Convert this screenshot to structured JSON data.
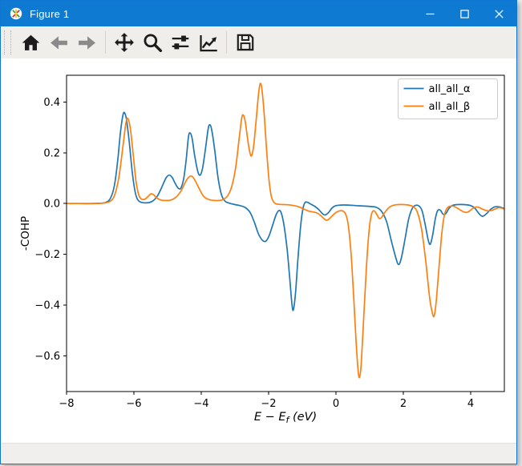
{
  "titlebar": {
    "title": "Figure 1",
    "app_icon": "matplotlib-logo",
    "controls": [
      {
        "name": "minimize"
      },
      {
        "name": "maximize"
      },
      {
        "name": "close"
      }
    ]
  },
  "toolbar": {
    "items": [
      {
        "name": "home"
      },
      {
        "name": "back"
      },
      {
        "name": "forward"
      },
      {
        "name": "pan"
      },
      {
        "name": "zoom"
      },
      {
        "name": "subplots"
      },
      {
        "name": "customize"
      },
      {
        "name": "save"
      }
    ]
  },
  "statusbar": {
    "text": ""
  },
  "chart_data": {
    "type": "line",
    "title": "",
    "xlabel": "E − E_f (eV)",
    "xlabel_parts": {
      "pre": "E − E",
      "sub": "f",
      "post": " (eV)"
    },
    "ylabel": "-COHP",
    "xlim": [
      -8,
      5
    ],
    "ylim": [
      -0.74,
      0.505
    ],
    "grid": false,
    "background": "#ffffff",
    "xticks": [
      -8,
      -6,
      -4,
      -2,
      0,
      2,
      4
    ],
    "xtick_labels": [
      "−8",
      "−6",
      "−4",
      "−2",
      "0",
      "2",
      "4"
    ],
    "yticks": [
      0.4,
      0.2,
      0.0,
      -0.2,
      -0.4,
      -0.6
    ],
    "ytick_labels": [
      "0.4",
      "0.2",
      "0.0",
      "−0.2",
      "−0.4",
      "−0.6"
    ],
    "legend": {
      "position": "upper right",
      "entries": [
        "all_all_α",
        "all_all_β"
      ]
    },
    "series": [
      {
        "name": "all_all_α",
        "color": "#1f77b4",
        "points": [
          [
            -8.0,
            0
          ],
          [
            -7.6,
            0
          ],
          [
            -7.3,
            0
          ],
          [
            -7.05,
            0.001
          ],
          [
            -6.85,
            0.004
          ],
          [
            -6.7,
            0.02
          ],
          [
            -6.58,
            0.07
          ],
          [
            -6.48,
            0.17
          ],
          [
            -6.4,
            0.28
          ],
          [
            -6.33,
            0.345
          ],
          [
            -6.28,
            0.358
          ],
          [
            -6.22,
            0.33
          ],
          [
            -6.14,
            0.245
          ],
          [
            -6.05,
            0.125
          ],
          [
            -5.97,
            0.05
          ],
          [
            -5.9,
            0.018
          ],
          [
            -5.82,
            0.007
          ],
          [
            -5.7,
            0.003
          ],
          [
            -5.55,
            0.004
          ],
          [
            -5.42,
            0.012
          ],
          [
            -5.3,
            0.03
          ],
          [
            -5.18,
            0.062
          ],
          [
            -5.05,
            0.1
          ],
          [
            -4.95,
            0.112
          ],
          [
            -4.86,
            0.102
          ],
          [
            -4.77,
            0.078
          ],
          [
            -4.68,
            0.06
          ],
          [
            -4.6,
            0.062
          ],
          [
            -4.52,
            0.1
          ],
          [
            -4.45,
            0.17
          ],
          [
            -4.38,
            0.262
          ],
          [
            -4.33,
            0.278
          ],
          [
            -4.27,
            0.255
          ],
          [
            -4.19,
            0.185
          ],
          [
            -4.1,
            0.125
          ],
          [
            -4.03,
            0.112
          ],
          [
            -3.96,
            0.14
          ],
          [
            -3.88,
            0.21
          ],
          [
            -3.8,
            0.29
          ],
          [
            -3.75,
            0.31
          ],
          [
            -3.69,
            0.29
          ],
          [
            -3.6,
            0.21
          ],
          [
            -3.5,
            0.1
          ],
          [
            -3.4,
            0.035
          ],
          [
            -3.3,
            0.01
          ],
          [
            -3.18,
            0.002
          ],
          [
            -3.0,
            -0.004
          ],
          [
            -2.85,
            -0.008
          ],
          [
            -2.7,
            -0.015
          ],
          [
            -2.55,
            -0.035
          ],
          [
            -2.42,
            -0.075
          ],
          [
            -2.3,
            -0.12
          ],
          [
            -2.18,
            -0.145
          ],
          [
            -2.08,
            -0.148
          ],
          [
            -1.98,
            -0.125
          ],
          [
            -1.88,
            -0.085
          ],
          [
            -1.78,
            -0.045
          ],
          [
            -1.7,
            -0.028
          ],
          [
            -1.63,
            -0.035
          ],
          [
            -1.55,
            -0.08
          ],
          [
            -1.45,
            -0.18
          ],
          [
            -1.37,
            -0.3
          ],
          [
            -1.3,
            -0.405
          ],
          [
            -1.26,
            -0.415
          ],
          [
            -1.2,
            -0.35
          ],
          [
            -1.13,
            -0.22
          ],
          [
            -1.05,
            -0.09
          ],
          [
            -0.98,
            -0.02
          ],
          [
            -0.92,
            0.004
          ],
          [
            -0.85,
            0.005
          ],
          [
            -0.75,
            -0.002
          ],
          [
            -0.62,
            -0.012
          ],
          [
            -0.5,
            -0.025
          ],
          [
            -0.4,
            -0.04
          ],
          [
            -0.32,
            -0.045
          ],
          [
            -0.22,
            -0.035
          ],
          [
            -0.12,
            -0.018
          ],
          [
            -0.02,
            -0.009
          ],
          [
            0.15,
            -0.006
          ],
          [
            0.35,
            -0.006
          ],
          [
            0.6,
            -0.008
          ],
          [
            0.85,
            -0.01
          ],
          [
            1.05,
            -0.012
          ],
          [
            1.2,
            -0.015
          ],
          [
            1.35,
            -0.03
          ],
          [
            1.5,
            -0.07
          ],
          [
            1.65,
            -0.15
          ],
          [
            1.78,
            -0.215
          ],
          [
            1.86,
            -0.24
          ],
          [
            1.94,
            -0.215
          ],
          [
            2.05,
            -0.14
          ],
          [
            2.16,
            -0.06
          ],
          [
            2.27,
            -0.018
          ],
          [
            2.37,
            -0.007
          ],
          [
            2.47,
            -0.01
          ],
          [
            2.56,
            -0.03
          ],
          [
            2.66,
            -0.09
          ],
          [
            2.74,
            -0.145
          ],
          [
            2.8,
            -0.16
          ],
          [
            2.87,
            -0.125
          ],
          [
            2.95,
            -0.06
          ],
          [
            3.02,
            -0.028
          ],
          [
            3.1,
            -0.026
          ],
          [
            3.18,
            -0.042
          ],
          [
            3.26,
            -0.04
          ],
          [
            3.35,
            -0.02
          ],
          [
            3.45,
            -0.008
          ],
          [
            3.6,
            -0.004
          ],
          [
            3.8,
            -0.004
          ],
          [
            4.0,
            -0.008
          ],
          [
            4.12,
            -0.018
          ],
          [
            4.25,
            -0.04
          ],
          [
            4.35,
            -0.05
          ],
          [
            4.47,
            -0.04
          ],
          [
            4.6,
            -0.022
          ],
          [
            4.72,
            -0.013
          ],
          [
            4.85,
            -0.013
          ],
          [
            5.0,
            -0.02
          ]
        ]
      },
      {
        "name": "all_all_β",
        "color": "#ff7f0e",
        "points": [
          [
            -8.0,
            0
          ],
          [
            -7.5,
            0
          ],
          [
            -7.1,
            0
          ],
          [
            -6.9,
            0.002
          ],
          [
            -6.72,
            0.008
          ],
          [
            -6.58,
            0.03
          ],
          [
            -6.45,
            0.1
          ],
          [
            -6.33,
            0.22
          ],
          [
            -6.24,
            0.315
          ],
          [
            -6.18,
            0.335
          ],
          [
            -6.1,
            0.29
          ],
          [
            -6.02,
            0.19
          ],
          [
            -5.94,
            0.09
          ],
          [
            -5.87,
            0.04
          ],
          [
            -5.8,
            0.02
          ],
          [
            -5.7,
            0.016
          ],
          [
            -5.6,
            0.025
          ],
          [
            -5.5,
            0.038
          ],
          [
            -5.42,
            0.035
          ],
          [
            -5.32,
            0.022
          ],
          [
            -5.2,
            0.014
          ],
          [
            -5.05,
            0.012
          ],
          [
            -4.9,
            0.014
          ],
          [
            -4.75,
            0.025
          ],
          [
            -4.6,
            0.05
          ],
          [
            -4.47,
            0.085
          ],
          [
            -4.36,
            0.105
          ],
          [
            -4.28,
            0.108
          ],
          [
            -4.18,
            0.09
          ],
          [
            -4.06,
            0.058
          ],
          [
            -3.95,
            0.032
          ],
          [
            -3.85,
            0.02
          ],
          [
            -3.72,
            0.014
          ],
          [
            -3.6,
            0.012
          ],
          [
            -3.48,
            0.012
          ],
          [
            -3.35,
            0.016
          ],
          [
            -3.22,
            0.03
          ],
          [
            -3.1,
            0.065
          ],
          [
            -2.98,
            0.14
          ],
          [
            -2.88,
            0.25
          ],
          [
            -2.8,
            0.335
          ],
          [
            -2.75,
            0.348
          ],
          [
            -2.69,
            0.32
          ],
          [
            -2.62,
            0.25
          ],
          [
            -2.55,
            0.197
          ],
          [
            -2.5,
            0.19
          ],
          [
            -2.44,
            0.23
          ],
          [
            -2.37,
            0.33
          ],
          [
            -2.3,
            0.43
          ],
          [
            -2.25,
            0.472
          ],
          [
            -2.2,
            0.45
          ],
          [
            -2.13,
            0.35
          ],
          [
            -2.06,
            0.21
          ],
          [
            -1.99,
            0.095
          ],
          [
            -1.93,
            0.035
          ],
          [
            -1.87,
            0.01
          ],
          [
            -1.8,
            0.0
          ],
          [
            -1.7,
            -0.003
          ],
          [
            -1.55,
            -0.004
          ],
          [
            -1.4,
            -0.005
          ],
          [
            -1.25,
            -0.008
          ],
          [
            -1.1,
            -0.013
          ],
          [
            -0.95,
            -0.022
          ],
          [
            -0.8,
            -0.03
          ],
          [
            -0.68,
            -0.033
          ],
          [
            -0.55,
            -0.038
          ],
          [
            -0.45,
            -0.048
          ],
          [
            -0.35,
            -0.06
          ],
          [
            -0.28,
            -0.066
          ],
          [
            -0.2,
            -0.06
          ],
          [
            -0.1,
            -0.047
          ],
          [
            0.0,
            -0.035
          ],
          [
            0.1,
            -0.029
          ],
          [
            0.2,
            -0.029
          ],
          [
            0.28,
            -0.04
          ],
          [
            0.36,
            -0.08
          ],
          [
            0.45,
            -0.2
          ],
          [
            0.53,
            -0.38
          ],
          [
            0.6,
            -0.55
          ],
          [
            0.66,
            -0.66
          ],
          [
            0.7,
            -0.684
          ],
          [
            0.75,
            -0.63
          ],
          [
            0.82,
            -0.46
          ],
          [
            0.9,
            -0.26
          ],
          [
            0.98,
            -0.11
          ],
          [
            1.05,
            -0.045
          ],
          [
            1.12,
            -0.028
          ],
          [
            1.2,
            -0.04
          ],
          [
            1.28,
            -0.058
          ],
          [
            1.35,
            -0.055
          ],
          [
            1.45,
            -0.035
          ],
          [
            1.58,
            -0.015
          ],
          [
            1.7,
            -0.007
          ],
          [
            1.85,
            -0.004
          ],
          [
            2.0,
            -0.004
          ],
          [
            2.15,
            -0.006
          ],
          [
            2.3,
            -0.013
          ],
          [
            2.42,
            -0.035
          ],
          [
            2.54,
            -0.1
          ],
          [
            2.66,
            -0.22
          ],
          [
            2.78,
            -0.37
          ],
          [
            2.87,
            -0.435
          ],
          [
            2.92,
            -0.44
          ],
          [
            2.98,
            -0.38
          ],
          [
            3.06,
            -0.25
          ],
          [
            3.14,
            -0.12
          ],
          [
            3.22,
            -0.045
          ],
          [
            3.3,
            -0.018
          ],
          [
            3.4,
            -0.01
          ],
          [
            3.52,
            -0.012
          ],
          [
            3.65,
            -0.022
          ],
          [
            3.78,
            -0.032
          ],
          [
            3.88,
            -0.035
          ],
          [
            3.98,
            -0.028
          ],
          [
            4.1,
            -0.016
          ],
          [
            4.22,
            -0.014
          ],
          [
            4.35,
            -0.022
          ],
          [
            4.48,
            -0.028
          ],
          [
            4.6,
            -0.028
          ],
          [
            4.72,
            -0.022
          ],
          [
            4.85,
            -0.016
          ],
          [
            5.0,
            -0.022
          ]
        ]
      }
    ]
  }
}
